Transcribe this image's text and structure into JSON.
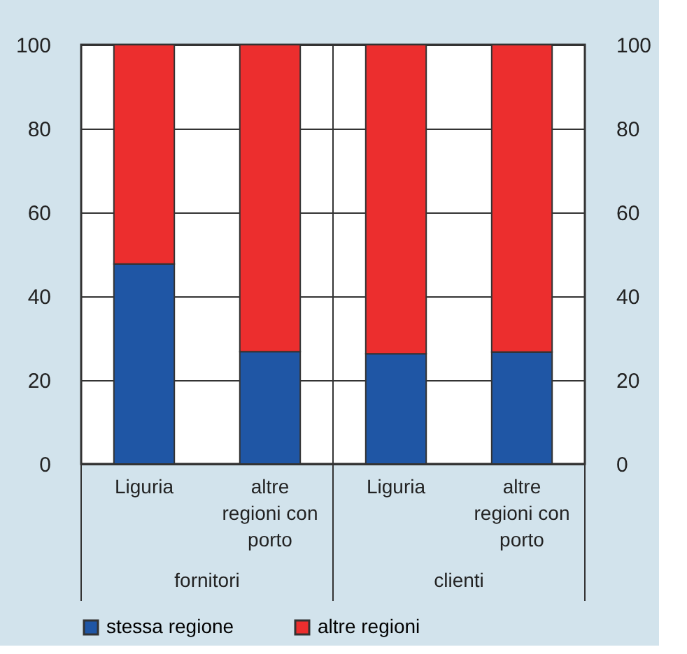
{
  "chart_data": {
    "type": "bar",
    "stacked": true,
    "categories": [
      "Liguria",
      "altre regioni con porto",
      "Liguria",
      "altre regioni con porto"
    ],
    "series": [
      {
        "name": "stessa regione",
        "color": "#1f56a5",
        "values": [
          47.7,
          26.8,
          26.3,
          26.7
        ]
      },
      {
        "name": "altre regioni",
        "color": "#ec2e2e",
        "values": [
          52.3,
          73.2,
          73.7,
          73.3
        ]
      }
    ],
    "annotations": [
      "fornitori",
      "clienti"
    ],
    "ylim": [
      0,
      100
    ],
    "yticks": [
      0,
      20,
      40,
      60,
      80,
      100
    ],
    "y2lim": [
      0,
      100
    ],
    "y2ticks": [
      0,
      20,
      40,
      60,
      80,
      100
    ],
    "grid": "y",
    "legend": "bottom"
  }
}
